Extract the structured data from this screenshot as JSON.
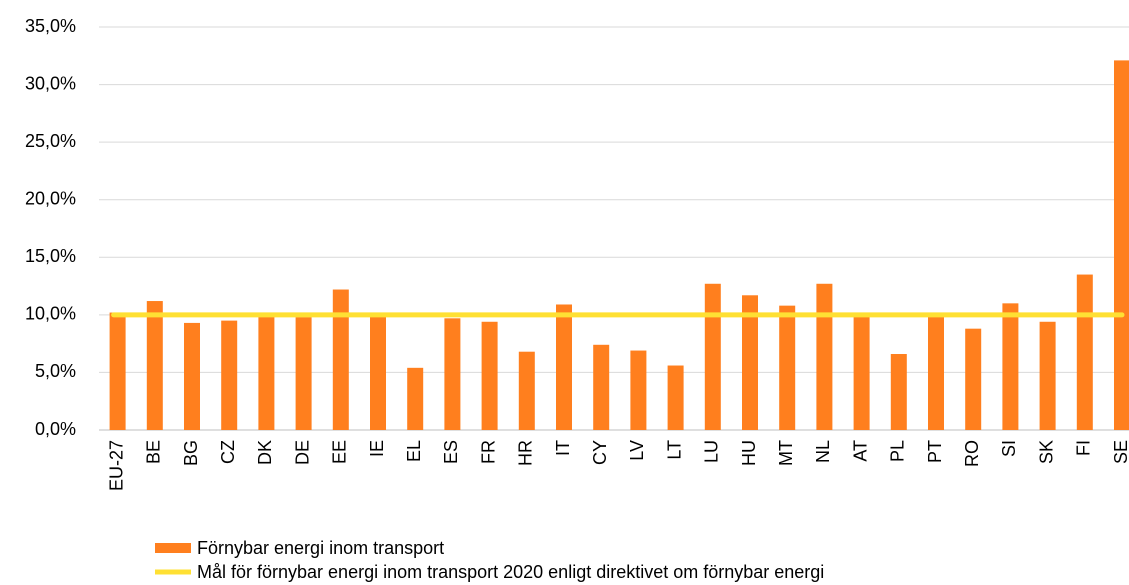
{
  "chart_data": {
    "type": "bar",
    "categories": [
      "EU-27",
      "BE",
      "BG",
      "CZ",
      "DK",
      "DE",
      "EE",
      "IE",
      "EL",
      "ES",
      "FR",
      "HR",
      "IT",
      "CY",
      "LV",
      "LT",
      "LU",
      "HU",
      "MT",
      "NL",
      "AT",
      "PL",
      "PT",
      "RO",
      "SI",
      "SK",
      "FI",
      "SE"
    ],
    "series": [
      {
        "name": "Förnybar energi inom transport",
        "color": "#ff7f1e",
        "values": [
          10.2,
          11.2,
          9.3,
          9.5,
          9.9,
          9.8,
          12.2,
          10.1,
          5.4,
          9.7,
          9.4,
          6.8,
          10.9,
          7.4,
          6.9,
          5.6,
          12.7,
          11.7,
          10.8,
          12.7,
          10.2,
          6.6,
          9.9,
          8.8,
          11.0,
          9.4,
          13.5,
          32.1
        ]
      }
    ],
    "target": {
      "name": "Mål för förnybar energi inom transport 2020 enligt direktivet om förnybar energi",
      "color": "#ffe033",
      "value": 10
    },
    "ylim": [
      0,
      35
    ],
    "yticks": [
      {
        "value": 0,
        "label": "0,0%"
      },
      {
        "value": 5,
        "label": "5,0%"
      },
      {
        "value": 10,
        "label": "10,0%"
      },
      {
        "value": 15,
        "label": "15,0%"
      },
      {
        "value": 20,
        "label": "20,0%"
      },
      {
        "value": 25,
        "label": "25,0%"
      },
      {
        "value": 30,
        "label": "30,0%"
      },
      {
        "value": 35,
        "label": "35,0%"
      }
    ],
    "grid": true
  }
}
